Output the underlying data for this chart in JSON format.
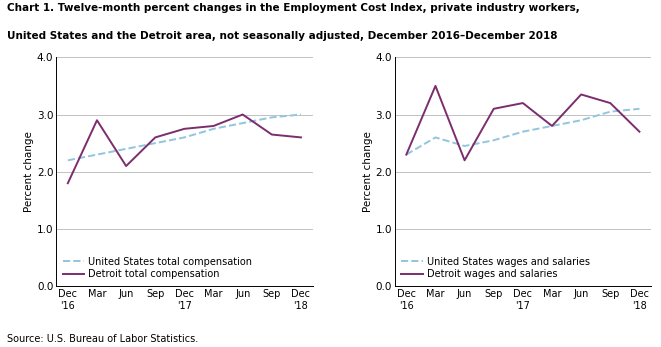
{
  "title_line1": "Chart 1. Twelve-month percent changes in the Employment Cost Index, private industry workers,",
  "title_line2": "United States and the Detroit area, not seasonally adjusted, December 2016–December 2018",
  "source": "Source: U.S. Bureau of Labor Statistics.",
  "ylabel": "Percent change",
  "x_labels": [
    "Dec\n'16",
    "Mar",
    "Jun",
    "Sep",
    "Dec\n'17",
    "Mar",
    "Jun",
    "Sep",
    "Dec\n'18"
  ],
  "chart1": {
    "us_label": "United States total compensation",
    "detroit_label": "Detroit total compensation",
    "us_values": [
      2.2,
      2.3,
      2.4,
      2.5,
      2.6,
      2.75,
      2.85,
      2.95,
      3.0
    ],
    "detroit_values": [
      1.8,
      2.9,
      2.1,
      2.6,
      2.75,
      2.8,
      3.0,
      2.65,
      2.6
    ]
  },
  "chart2": {
    "us_label": "United States wages and salaries",
    "detroit_label": "Detroit wages and salaries",
    "us_values": [
      2.3,
      2.6,
      2.45,
      2.55,
      2.7,
      2.8,
      2.9,
      3.05,
      3.1
    ],
    "detroit_values": [
      2.3,
      3.5,
      2.2,
      3.1,
      3.2,
      2.8,
      3.35,
      3.2,
      2.7
    ]
  },
  "us_color": "#92C5DE",
  "detroit_color": "#7B2D6E",
  "ylim": [
    0.0,
    4.0
  ],
  "yticks": [
    0.0,
    1.0,
    2.0,
    3.0,
    4.0
  ]
}
